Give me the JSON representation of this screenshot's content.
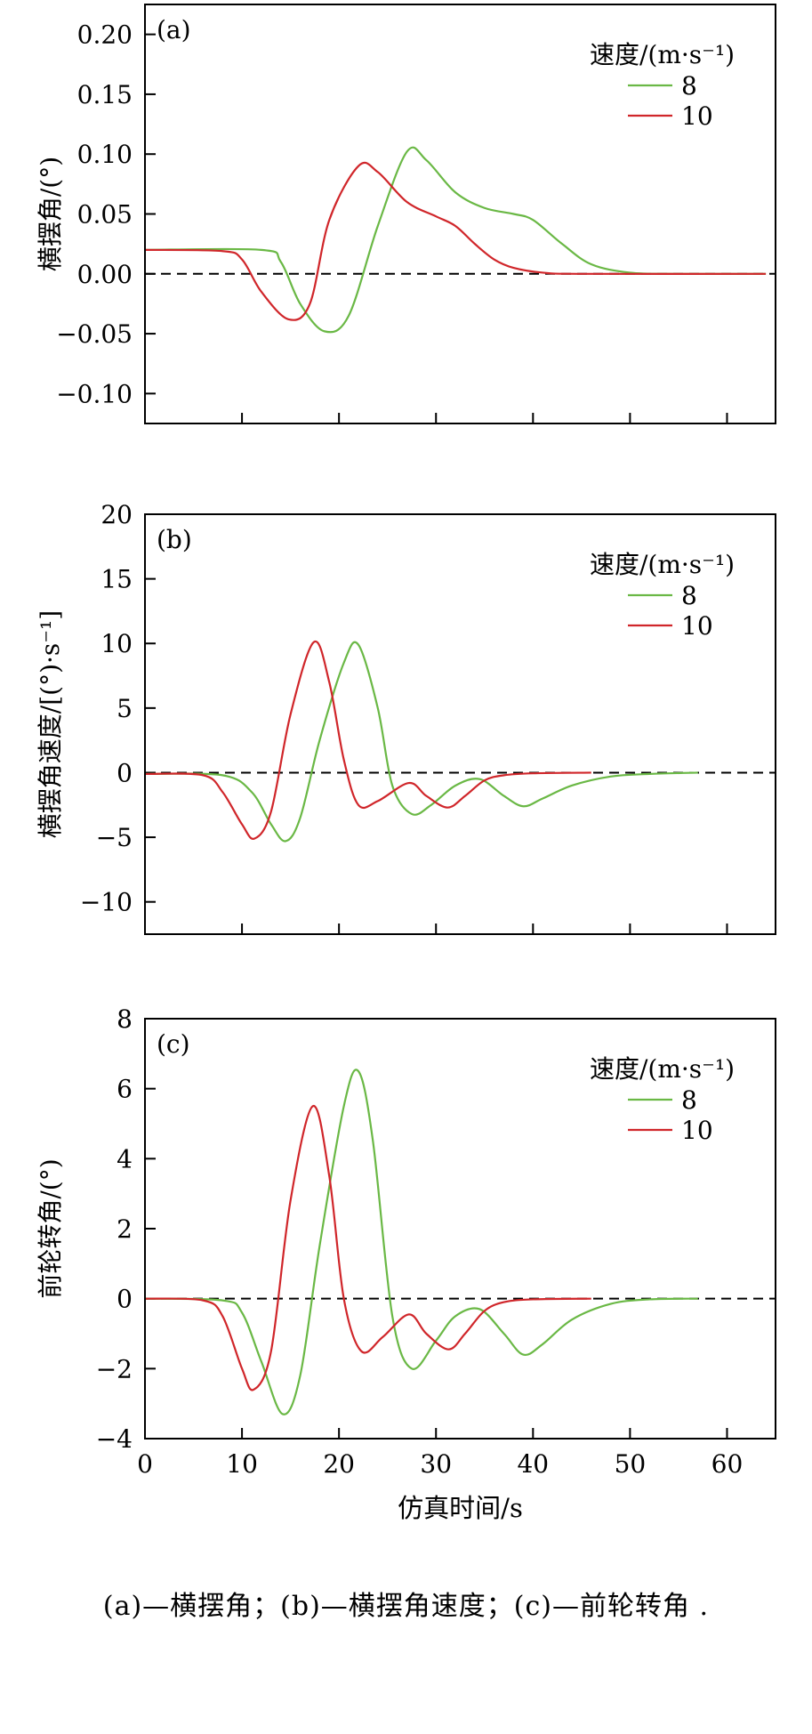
{
  "caption": "(a)—横摆角；(b)—横摆角速度；(c)—前轮转角 .",
  "colors": {
    "v8": "#6ab845",
    "v10": "#d0262a",
    "zero_line": "#000000"
  },
  "chart_data": [
    {
      "type": "line",
      "panel_label": "(a)",
      "xlabel": "",
      "ylabel": "横摆角/(°)",
      "xlim": [
        0,
        65
      ],
      "ylim": [
        -0.125,
        0.225
      ],
      "x_ticks": [
        10,
        20,
        30,
        40,
        50,
        60
      ],
      "y_ticks": [
        -0.1,
        -0.05,
        0.0,
        0.05,
        0.1,
        0.15,
        0.2
      ],
      "y_tick_labels": [
        "−0.10",
        "−0.05",
        "0.00",
        "0.05",
        "0.10",
        "0.15",
        "0.20"
      ],
      "show_x_tick_labels": false,
      "legend": {
        "title": "速度/(m·s⁻¹)",
        "placement": "top-right"
      },
      "reference_line": 0,
      "series": [
        {
          "name": "8",
          "color": "#6ab845",
          "x": [
            0,
            12,
            14,
            16,
            18.5,
            21,
            24,
            27,
            29,
            32,
            35,
            38,
            40,
            43,
            46,
            50,
            55,
            64
          ],
          "y": [
            0.02,
            0.02,
            0.01,
            -0.025,
            -0.048,
            -0.035,
            0.04,
            0.102,
            0.095,
            0.068,
            0.055,
            0.05,
            0.045,
            0.025,
            0.008,
            0.001,
            0.0,
            0.0
          ]
        },
        {
          "name": "10",
          "color": "#d0262a",
          "x": [
            0,
            8,
            10,
            12,
            14.8,
            17,
            19,
            22,
            24,
            27,
            30,
            32,
            34,
            36,
            38,
            41,
            45,
            64
          ],
          "y": [
            0.02,
            0.019,
            0.012,
            -0.015,
            -0.038,
            -0.025,
            0.045,
            0.09,
            0.085,
            0.06,
            0.048,
            0.04,
            0.025,
            0.012,
            0.005,
            0.001,
            0.0,
            0.0
          ]
        }
      ]
    },
    {
      "type": "line",
      "panel_label": "(b)",
      "xlabel": "",
      "ylabel": "横摆角速度/[(°)·s⁻¹]",
      "xlim": [
        0,
        65
      ],
      "ylim": [
        -12.5,
        20
      ],
      "x_ticks": [
        10,
        20,
        30,
        40,
        50,
        60
      ],
      "y_ticks": [
        -10,
        -5,
        0,
        5,
        10,
        15,
        20
      ],
      "y_tick_labels": [
        "−10",
        "−5",
        "0",
        "5",
        "10",
        "15",
        "20"
      ],
      "show_x_tick_labels": false,
      "legend": {
        "title": "速度/(m·s⁻¹)",
        "placement": "top-right"
      },
      "reference_line": 0,
      "series": [
        {
          "name": "8",
          "color": "#6ab845",
          "x": [
            0,
            8,
            11,
            13,
            14.5,
            16,
            18,
            20.5,
            22,
            24,
            25.5,
            27.5,
            29.5,
            32,
            34.5,
            37,
            39,
            41,
            44,
            48,
            52,
            57
          ],
          "y": [
            -0.1,
            -0.2,
            -1.5,
            -4.0,
            -5.3,
            -3.5,
            2.5,
            8.5,
            9.9,
            5.0,
            -1.0,
            -3.2,
            -2.5,
            -1.0,
            -0.5,
            -1.8,
            -2.6,
            -2.0,
            -1.0,
            -0.3,
            -0.1,
            0.0
          ]
        },
        {
          "name": "10",
          "color": "#d0262a",
          "x": [
            0,
            6,
            8,
            10,
            11.3,
            13,
            15,
            17.4,
            19,
            20.5,
            22,
            24,
            27.2,
            29,
            31.2,
            33,
            35,
            37,
            40,
            46
          ],
          "y": [
            -0.1,
            -0.2,
            -1.5,
            -4.0,
            -5.1,
            -3.0,
            4.5,
            10.1,
            7.0,
            1.0,
            -2.5,
            -2.2,
            -0.8,
            -1.8,
            -2.7,
            -1.8,
            -0.6,
            -0.2,
            -0.05,
            0.0
          ]
        }
      ]
    },
    {
      "type": "line",
      "panel_label": "(c)",
      "xlabel": "仿真时间/s",
      "ylabel": "前轮转角/(°)",
      "xlim": [
        0,
        65
      ],
      "ylim": [
        -4,
        8
      ],
      "x_ticks": [
        0,
        10,
        20,
        30,
        40,
        50,
        60
      ],
      "y_ticks": [
        -4,
        -2,
        0,
        2,
        4,
        6,
        8
      ],
      "y_tick_labels": [
        "−4",
        "−2",
        "0",
        "2",
        "4",
        "6",
        "8"
      ],
      "show_x_tick_labels": true,
      "legend": {
        "title": "速度/(m·s⁻¹)",
        "placement": "top-right"
      },
      "reference_line": 0,
      "series": [
        {
          "name": "8",
          "color": "#6ab845",
          "x": [
            0,
            8,
            10,
            12,
            14.2,
            16,
            18,
            20.5,
            22,
            23.5,
            25.5,
            27.5,
            30,
            32,
            34.5,
            37,
            39,
            41,
            44,
            48,
            52,
            57
          ],
          "y": [
            0.0,
            -0.05,
            -0.4,
            -1.8,
            -3.3,
            -2.2,
            1.5,
            5.5,
            6.5,
            4.5,
            -0.5,
            -2.0,
            -1.2,
            -0.5,
            -0.3,
            -1.0,
            -1.6,
            -1.3,
            -0.6,
            -0.15,
            -0.02,
            0.0
          ]
        },
        {
          "name": "10",
          "color": "#d0262a",
          "x": [
            0,
            6,
            8,
            10,
            11.2,
            13,
            15,
            17.3,
            19,
            20.5,
            22.3,
            24.5,
            27.2,
            29,
            31.3,
            33,
            35,
            37,
            40,
            46
          ],
          "y": [
            0.0,
            -0.05,
            -0.5,
            -2.0,
            -2.6,
            -1.5,
            2.8,
            5.5,
            3.5,
            0.0,
            -1.5,
            -1.1,
            -0.45,
            -1.0,
            -1.45,
            -1.0,
            -0.35,
            -0.1,
            -0.02,
            0.0
          ]
        }
      ]
    }
  ]
}
